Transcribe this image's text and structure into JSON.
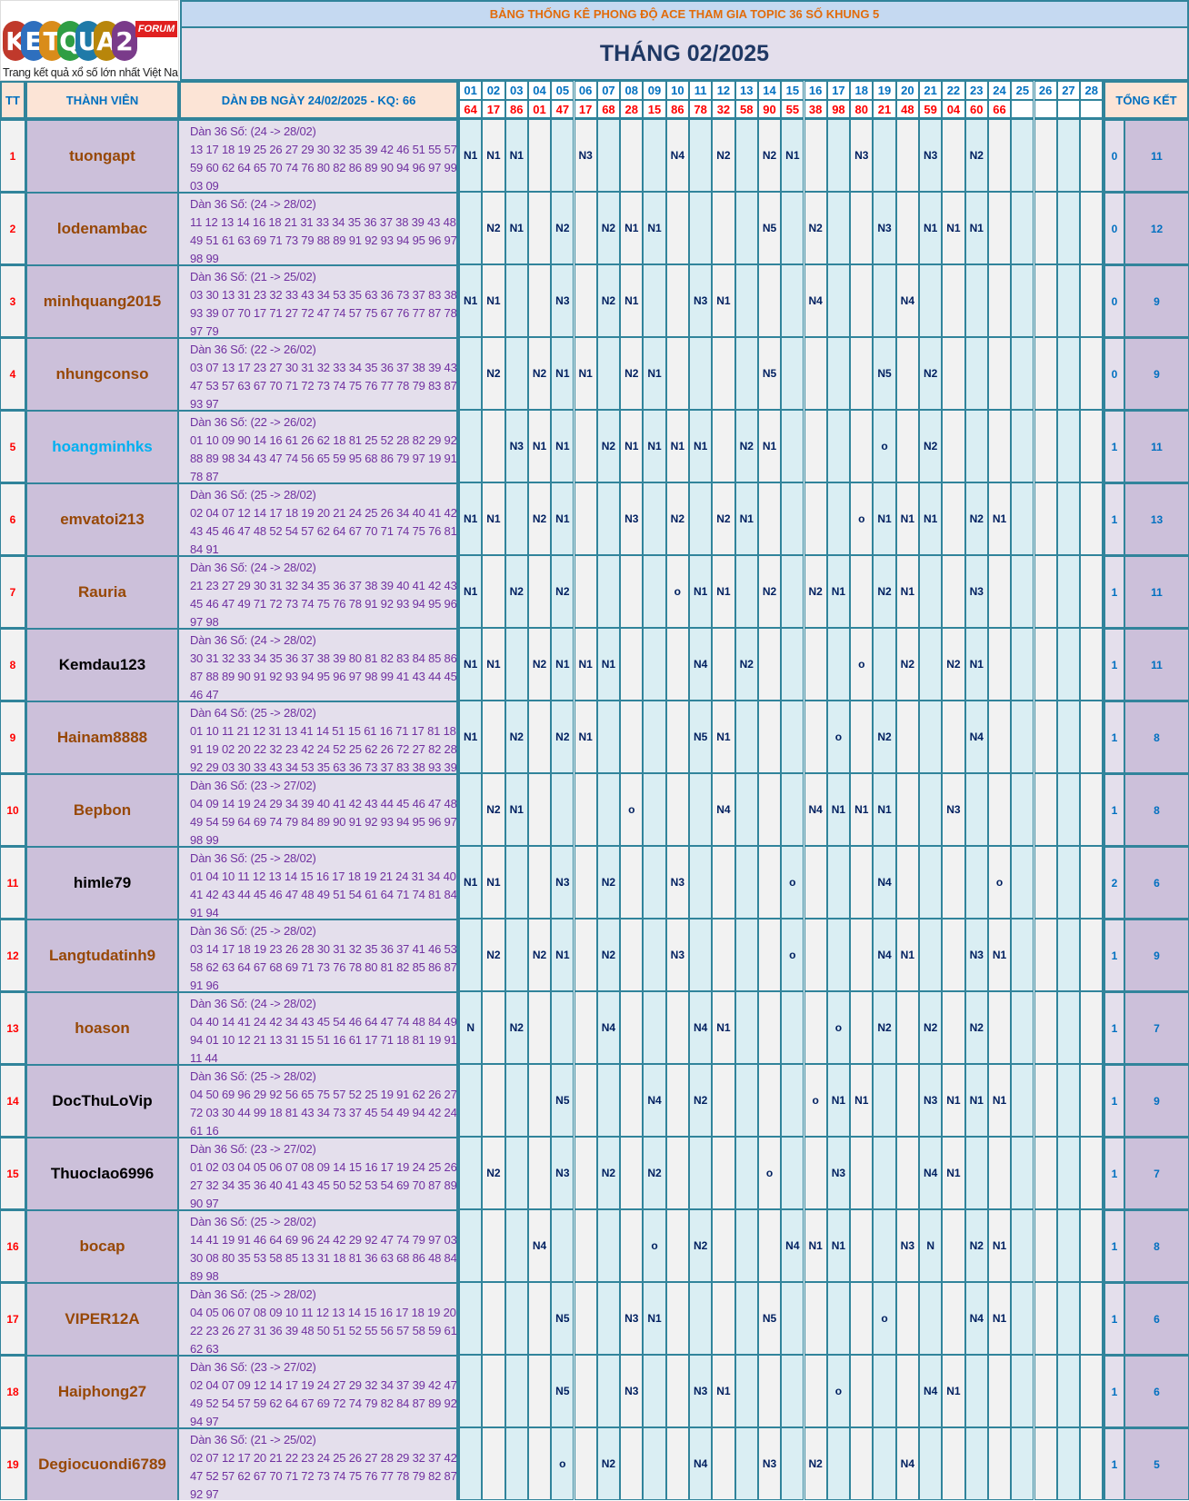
{
  "logo": {
    "brand": "KETQUA2",
    "badge": "FORUM",
    "tagline": "Trang kết quả xổ số lớn nhất Việt Nam",
    "letters": [
      "K",
      "E",
      "T",
      "Q",
      "U",
      "A",
      "2"
    ],
    "letter_colors": [
      "#c0392b",
      "#2e6fbe",
      "#d98c1a",
      "#2f9e44",
      "#1f7aa8",
      "#b8860b",
      "#7a3b8a"
    ]
  },
  "header": {
    "title": "BẢNG THỐNG KÊ PHONG ĐỘ ACE THAM GIA TOPIC 36 SỐ KHUNG 5",
    "month": "THÁNG 02/2025",
    "col_tt": "TT",
    "col_member": "THÀNH VIÊN",
    "col_dan": "DÀN ĐB NGÀY 24/02/2025 - KQ: 66",
    "col_total": "TỔNG KẾT"
  },
  "days": [
    "01",
    "02",
    "03",
    "04",
    "05",
    "06",
    "07",
    "08",
    "09",
    "10",
    "11",
    "12",
    "13",
    "14",
    "15",
    "16",
    "17",
    "18",
    "19",
    "20",
    "21",
    "22",
    "23",
    "24",
    "25",
    "26",
    "27",
    "28"
  ],
  "results": [
    "64",
    "17",
    "86",
    "01",
    "47",
    "17",
    "68",
    "28",
    "15",
    "86",
    "78",
    "32",
    "58",
    "90",
    "55",
    "38",
    "98",
    "80",
    "21",
    "48",
    "59",
    "04",
    "60",
    "66",
    "",
    "",
    "",
    ""
  ],
  "colors": {
    "border": "#31849b",
    "name_brown": "#974806",
    "name_blue": "#00b0f0",
    "name_black": "#000000",
    "cell_text": "#002060",
    "dan_text": "#7030a0",
    "result_red": "#ff0000",
    "day_blue": "#0070c0"
  },
  "rows": [
    {
      "tt": "1",
      "name": "tuongapt",
      "color": "#974806",
      "dan": [
        "Dàn 36 Số: (24 -> 28/02)",
        "13 17 18 19 25 26 27 29 30 32 35 39 42 46 51 55 57",
        "59 60 62 64 65 70 74 76 80 82 86 89 90 94 96 97 99",
        "03 09"
      ],
      "cells": {
        "01": "N1",
        "02": "N1",
        "03": "N1",
        "06": "N3",
        "10": "N4",
        "12": "N2",
        "14": "N2",
        "15": "N1",
        "18": "N3",
        "21": "N3",
        "23": "N2"
      },
      "sum1": "0",
      "sum2": "11"
    },
    {
      "tt": "2",
      "name": "lodenambac",
      "color": "#974806",
      "dan": [
        "Dàn 36 Số: (24 -> 28/02)",
        "11 12 13 14 16 18 21 31 33 34 35 36 37 38 39 43 48",
        "49 51 61 63 69 71 73 79 88 89 91 92 93 94 95 96 97",
        "98 99"
      ],
      "cells": {
        "02": "N2",
        "03": "N1",
        "05": "N2",
        "07": "N2",
        "08": "N1",
        "09": "N1",
        "14": "N5",
        "16": "N2",
        "19": "N3",
        "21": "N1",
        "22": "N1",
        "23": "N1"
      },
      "sum1": "0",
      "sum2": "12"
    },
    {
      "tt": "3",
      "name": "minhquang2015",
      "color": "#974806",
      "dan": [
        "Dàn 36 Số: (21 -> 25/02)",
        "03 30 13 31 23 32 33 43 34 53 35 63 36 73 37 83 38",
        "93 39 07 70 17 71 27 72 47 74 57 75 67 76 77 87 78",
        "97 79"
      ],
      "cells": {
        "01": "N1",
        "02": "N1",
        "05": "N3",
        "07": "N2",
        "08": "N1",
        "11": "N3",
        "12": "N1",
        "16": "N4",
        "20": "N4"
      },
      "sum1": "0",
      "sum2": "9"
    },
    {
      "tt": "4",
      "name": "nhungconso",
      "color": "#974806",
      "dan": [
        "Dàn 36 Số: (22 -> 26/02)",
        "03 07 13 17 23 27 30 31 32 33 34 35 36 37 38 39 43",
        "47 53 57 63 67 70 71 72 73 74 75 76 77 78 79 83 87",
        "93 97"
      ],
      "cells": {
        "02": "N2",
        "04": "N2",
        "05": "N1",
        "06": "N1",
        "08": "N2",
        "09": "N1",
        "14": "N5",
        "19": "N5",
        "21": "N2"
      },
      "sum1": "0",
      "sum2": "9"
    },
    {
      "tt": "5",
      "name": "hoangminhks",
      "color": "#00b0f0",
      "dan": [
        "Dàn 36 Số: (22 -> 26/02)",
        "01 10 09 90 14 16 61 26 62 18 81 25 52 28 82 29 92",
        "88 89 98 34 43 47 74 56 65 59 95 68 86 79 97 19 91",
        "78 87"
      ],
      "cells": {
        "03": "N3",
        "04": "N1",
        "05": "N1",
        "07": "N2",
        "08": "N1",
        "09": "N1",
        "10": "N1",
        "11": "N1",
        "13": "N2",
        "14": "N1",
        "19": "o",
        "21": "N2"
      },
      "sum1": "1",
      "sum2": "11"
    },
    {
      "tt": "6",
      "name": "emvatoi213",
      "color": "#974806",
      "dan": [
        "Dàn 36 Số: (25 -> 28/02)",
        "02 04 07 12 14 17 18 19 20 21 24 25 26 34 40 41 42",
        "43 45 46 47 48 52 54 57 62 64 67 70 71 74 75 76 81",
        "84 91"
      ],
      "cells": {
        "01": "N1",
        "02": "N1",
        "04": "N2",
        "05": "N1",
        "08": "N3",
        "10": "N2",
        "12": "N2",
        "13": "N1",
        "18": "o",
        "19": "N1",
        "20": "N1",
        "21": "N1",
        "23": "N2",
        "24": "N1"
      },
      "sum1": "1",
      "sum2": "13"
    },
    {
      "tt": "7",
      "name": "Rauria",
      "color": "#974806",
      "dan": [
        "Dàn 36 Số: (24 -> 28/02)",
        "21 23 27 29 30 31 32 34 35 36 37 38 39 40 41 42 43",
        "45 46 47 49 71 72 73 74 75 76 78 91 92 93 94 95 96",
        "97 98"
      ],
      "cells": {
        "01": "N1",
        "03": "N2",
        "05": "N2",
        "10": "o",
        "11": "N1",
        "12": "N1",
        "14": "N2",
        "16": "N2",
        "17": "N1",
        "19": "N2",
        "20": "N1",
        "23": "N3"
      },
      "sum1": "1",
      "sum2": "11"
    },
    {
      "tt": "8",
      "name": "Kemdau123",
      "color": "#000000",
      "dan": [
        "Dàn 36 Số: (24 -> 28/02)",
        "30 31 32 33 34 35 36 37 38 39 80 81 82 83 84 85 86",
        "87 88 89 90 91 92 93 94 95 96 97 98 99 41 43 44 45",
        "46 47"
      ],
      "cells": {
        "01": "N1",
        "02": "N1",
        "04": "N2",
        "05": "N1",
        "06": "N1",
        "07": "N1",
        "11": "N4",
        "13": "N2",
        "18": "o",
        "20": "N2",
        "22": "N2",
        "23": "N1"
      },
      "sum1": "1",
      "sum2": "11"
    },
    {
      "tt": "9",
      "name": "Hainam8888",
      "color": "#974806",
      "dan": [
        "Dàn 64 Số: (25 -> 28/02)",
        "01 10 11 21 12 31 13 41 14 51 15 61 16 71 17 81 18",
        "91 19 02 20 22 32 23 42 24 52 25 62 26 72 27 82 28",
        "92 29 03 30 33 43 34 53 35 63 36 73 37 83 38 93 39"
      ],
      "cells": {
        "01": "N1",
        "03": "N2",
        "05": "N2",
        "06": "N1",
        "11": "N5",
        "12": "N1",
        "17": "o",
        "19": "N2",
        "23": "N4"
      },
      "sum1": "1",
      "sum2": "8"
    },
    {
      "tt": "10",
      "name": "Bepbon",
      "color": "#974806",
      "dan": [
        "Dàn 36 Số: (23 -> 27/02)",
        "04 09 14 19 24 29 34 39 40 41 42 43 44 45 46 47 48",
        "49 54 59 64 69 74 79 84 89 90 91 92 93 94 95 96 97",
        "98 99"
      ],
      "cells": {
        "02": "N2",
        "03": "N1",
        "08": "o",
        "12": "N4",
        "16": "N4",
        "17": "N1",
        "18": "N1",
        "19": "N1",
        "22": "N3"
      },
      "sum1": "1",
      "sum2": "8"
    },
    {
      "tt": "11",
      "name": "himle79",
      "color": "#000000",
      "dan": [
        "Dàn 36 Số: (25 -> 28/02)",
        "01 04 10 11 12 13 14 15 16 17 18 19 21 24 31 34 40",
        "41 42 43 44 45 46 47 48 49 51 54 61 64 71 74 81 84",
        "91 94"
      ],
      "cells": {
        "01": "N1",
        "02": "N1",
        "05": "N3",
        "07": "N2",
        "10": "N3",
        "15": "o",
        "19": "N4",
        "24": "o"
      },
      "sum1": "2",
      "sum2": "6"
    },
    {
      "tt": "12",
      "name": "Langtudatinh9",
      "color": "#974806",
      "dan": [
        "Dàn 36 Số: (25 -> 28/02)",
        "03 14 17 18 19 23 26 28 30 31 32 35 36 37 41 46 53",
        "58 62 63 64 67 68 69 71 73 76 78 80 81 82 85 86 87",
        "91 96"
      ],
      "cells": {
        "02": "N2",
        "04": "N2",
        "05": "N1",
        "07": "N2",
        "10": "N3",
        "15": "o",
        "19": "N4",
        "20": "N1",
        "23": "N3",
        "24": "N1"
      },
      "sum1": "1",
      "sum2": "9"
    },
    {
      "tt": "13",
      "name": "hoason",
      "color": "#974806",
      "dan": [
        "Dàn 36 Số: (24 -> 28/02)",
        "04 40 14 41 24 42 34 43 45 54 46 64 47 74 48 84 49",
        "94 01 10 12 21 13 31 15 51 16 61 17 71 18 81 19 91",
        "11 44"
      ],
      "cells": {
        "01": "N",
        "03": "N2",
        "07": "N4",
        "11": "N4",
        "12": "N1",
        "17": "o",
        "19": "N2",
        "21": "N2",
        "23": "N2"
      },
      "sum1": "1",
      "sum2": "7"
    },
    {
      "tt": "14",
      "name": "DocThuLoVip",
      "color": "#000000",
      "dan": [
        "Dàn 36 Số: (25 -> 28/02)",
        "04 50 69 96 29 92 56 65 75 57 52 25 19 91 62 26 27",
        "72 03 30 44 99 18 81 43 34 73 37 45 54 49 94 42 24",
        "61 16"
      ],
      "cells": {
        "05": "N5",
        "09": "N4",
        "11": "N2",
        "16": "o",
        "17": "N1",
        "18": "N1",
        "21": "N3",
        "22": "N1",
        "23": "N1",
        "24": "N1"
      },
      "sum1": "1",
      "sum2": "9"
    },
    {
      "tt": "15",
      "name": "Thuoclao6996",
      "color": "#000000",
      "dan": [
        "Dàn 36 Số: (23 -> 27/02)",
        "01 02 03 04 05 06 07 08 09 14 15 16 17 19 24 25 26",
        "27 32 34 35 36 40 41 43 45 50 52 53 54 69 70 87 89",
        "90 97"
      ],
      "cells": {
        "02": "N2",
        "05": "N3",
        "07": "N2",
        "09": "N2",
        "14": "o",
        "17": "N3",
        "21": "N4",
        "22": "N1"
      },
      "sum1": "1",
      "sum2": "7"
    },
    {
      "tt": "16",
      "name": "bocap",
      "color": "#974806",
      "dan": [
        "Dàn 36 Số: (25 -> 28/02)",
        "14 41 19 91 46 64 69 96 24 42 29 92 47 74 79 97 03",
        "30 08 80 35 53 58 85 13 31 18 81 36 63 68 86 48 84",
        "89 98"
      ],
      "cells": {
        "04": "N4",
        "09": "o",
        "11": "N2",
        "15": "N4",
        "16": "N1",
        "17": "N1",
        "20": "N3",
        "21": "N",
        "23": "N2",
        "24": "N1"
      },
      "sum1": "1",
      "sum2": "8"
    },
    {
      "tt": "17",
      "name": "VIPER12A",
      "color": "#974806",
      "dan": [
        "Dàn 36 Số: (25 -> 28/02)",
        "04 05 06 07 08 09 10 11 12 13 14 15 16 17 18 19 20",
        "22 23 26 27 31 36 39 48 50 51 52 55 56 57 58 59 61",
        "62 63"
      ],
      "cells": {
        "05": "N5",
        "08": "N3",
        "09": "N1",
        "14": "N5",
        "19": "o",
        "23": "N4",
        "24": "N1"
      },
      "sum1": "1",
      "sum2": "6"
    },
    {
      "tt": "18",
      "name": "Haiphong27",
      "color": "#974806",
      "dan": [
        "Dàn 36 Số: (23 -> 27/02)",
        "02 04 07 09 12 14 17 19 24 27 29 32 34 37 39 42 47",
        "49 52 54 57 59 62 64 67 69 72 74 79 82 84 87 89 92",
        "94 97"
      ],
      "cells": {
        "05": "N5",
        "08": "N3",
        "11": "N3",
        "12": "N1",
        "17": "o",
        "21": "N4",
        "22": "N1"
      },
      "sum1": "1",
      "sum2": "6"
    },
    {
      "tt": "19",
      "name": "Degiocuondi6789",
      "color": "#974806",
      "dan": [
        "Dàn 36 Số: (21 -> 25/02)",
        "02 07 12 17 20 21 22 23 24 25 26 27 28 29 32 37 42",
        "47 52 57 62 67 70 71 72 73 74 75 76 77 78 79 82 87",
        "92 97"
      ],
      "cells": {
        "05": "o",
        "07": "N2",
        "11": "N4",
        "14": "N3",
        "16": "N2",
        "20": "N4"
      },
      "sum1": "1",
      "sum2": "5"
    }
  ]
}
